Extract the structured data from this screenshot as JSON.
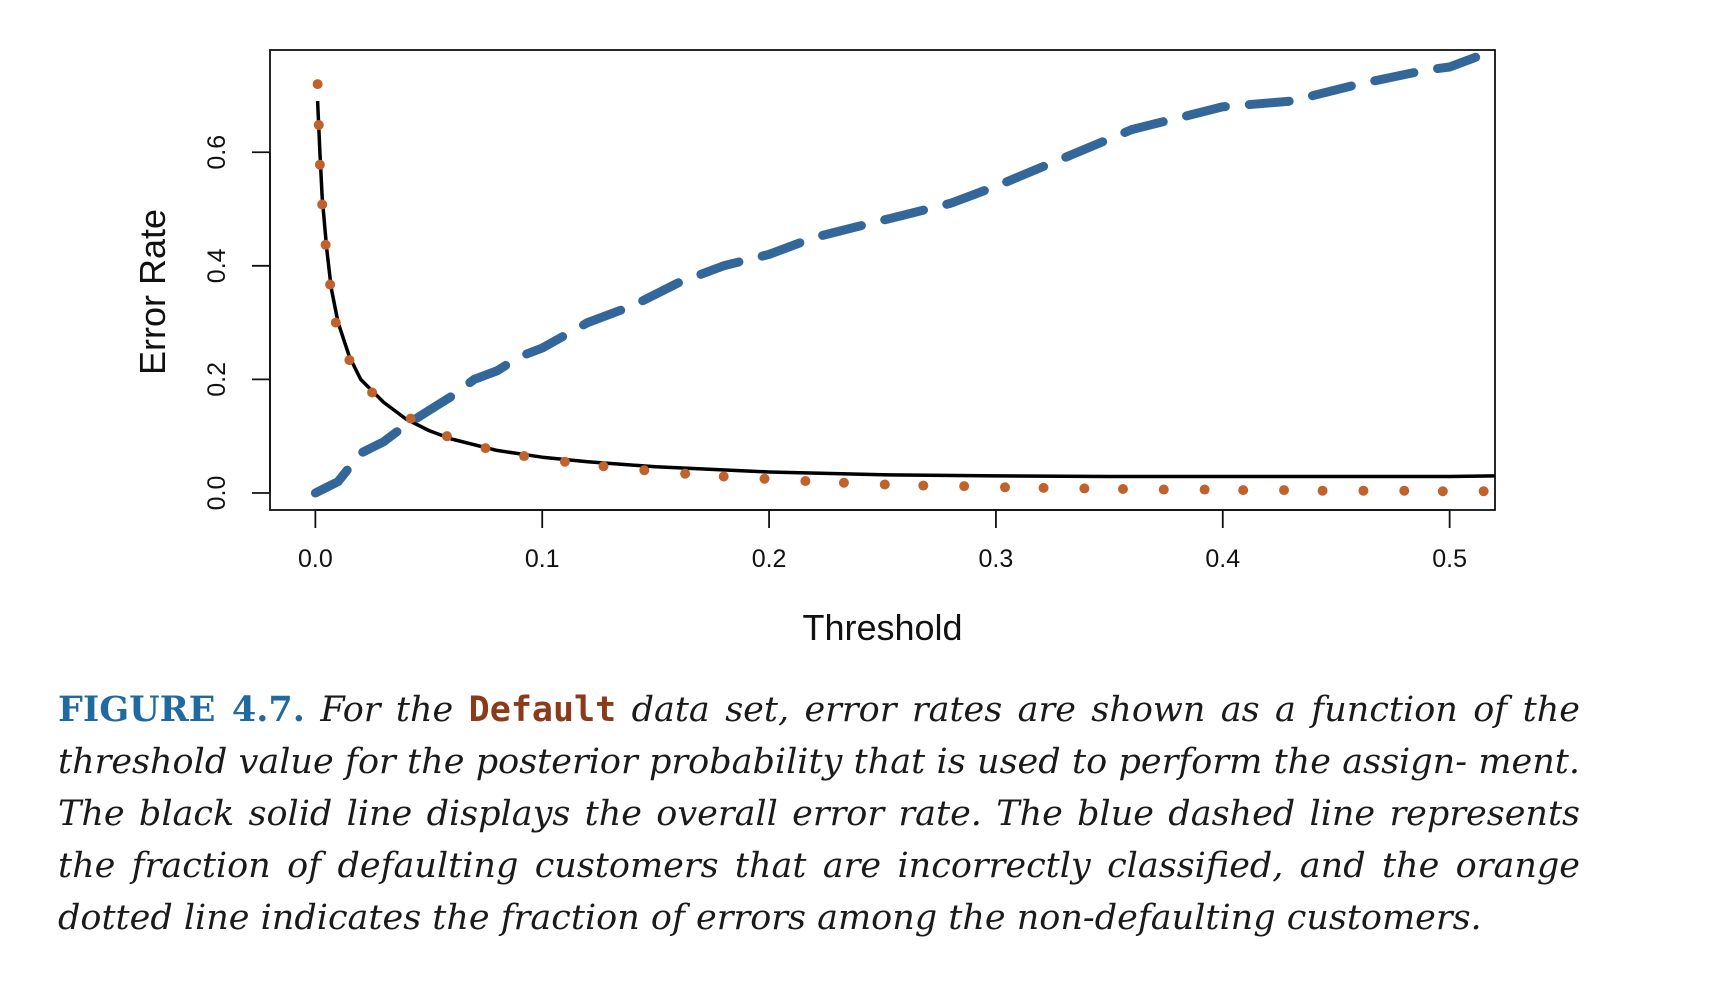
{
  "chart_data": {
    "type": "line",
    "xlabel": "Threshold",
    "ylabel": "Error Rate",
    "xlim": [
      -0.02,
      0.52
    ],
    "ylim": [
      -0.03,
      0.78
    ],
    "xticks": [
      0.0,
      0.1,
      0.2,
      0.3,
      0.4,
      0.5
    ],
    "xtick_labels": [
      "0.0",
      "0.1",
      "0.2",
      "0.3",
      "0.4",
      "0.5"
    ],
    "yticks": [
      0.0,
      0.2,
      0.4,
      0.6
    ],
    "ytick_labels": [
      "0.0",
      "0.2",
      "0.4",
      "0.6"
    ],
    "grid": false,
    "legend": "none",
    "series": [
      {
        "style": "solid",
        "color": "#000000",
        "x": [
          0.001,
          0.002,
          0.003,
          0.005,
          0.007,
          0.01,
          0.015,
          0.02,
          0.03,
          0.04,
          0.05,
          0.06,
          0.08,
          0.1,
          0.12,
          0.15,
          0.2,
          0.25,
          0.3,
          0.35,
          0.4,
          0.45,
          0.5,
          0.52
        ],
        "y": [
          0.69,
          0.6,
          0.52,
          0.43,
          0.36,
          0.3,
          0.24,
          0.2,
          0.16,
          0.13,
          0.11,
          0.095,
          0.075,
          0.063,
          0.055,
          0.046,
          0.037,
          0.032,
          0.03,
          0.029,
          0.029,
          0.029,
          0.029,
          0.03
        ]
      },
      {
        "style": "dashed",
        "color": "#336699",
        "x": [
          0.0,
          0.005,
          0.01,
          0.015,
          0.02,
          0.025,
          0.03,
          0.04,
          0.05,
          0.06,
          0.07,
          0.08,
          0.09,
          0.1,
          0.12,
          0.14,
          0.16,
          0.18,
          0.2,
          0.22,
          0.24,
          0.26,
          0.28,
          0.3,
          0.33,
          0.36,
          0.4,
          0.43,
          0.46,
          0.49,
          0.5,
          0.52
        ],
        "y": [
          0.0,
          0.01,
          0.02,
          0.045,
          0.07,
          0.08,
          0.09,
          0.12,
          0.145,
          0.17,
          0.2,
          0.215,
          0.24,
          0.255,
          0.3,
          0.33,
          0.37,
          0.4,
          0.42,
          0.45,
          0.47,
          0.49,
          0.51,
          0.54,
          0.59,
          0.64,
          0.68,
          0.69,
          0.72,
          0.745,
          0.75,
          0.78
        ]
      },
      {
        "style": "dotted",
        "color": "#c0622b",
        "x": [
          0.001,
          0.0015,
          0.002,
          0.003,
          0.0045,
          0.0065,
          0.009,
          0.015,
          0.025,
          0.042,
          0.058,
          0.075,
          0.092,
          0.11,
          0.127,
          0.145,
          0.163,
          0.18,
          0.198,
          0.216,
          0.233,
          0.251,
          0.268,
          0.286,
          0.304,
          0.321,
          0.339,
          0.356,
          0.374,
          0.392,
          0.409,
          0.427,
          0.444,
          0.462,
          0.48,
          0.497,
          0.515
        ],
        "y": [
          0.72,
          0.648,
          0.578,
          0.508,
          0.437,
          0.367,
          0.3,
          0.234,
          0.177,
          0.131,
          0.1,
          0.079,
          0.065,
          0.055,
          0.047,
          0.04,
          0.034,
          0.029,
          0.025,
          0.021,
          0.018,
          0.015,
          0.013,
          0.012,
          0.01,
          0.009,
          0.008,
          0.007,
          0.006,
          0.006,
          0.005,
          0.005,
          0.004,
          0.004,
          0.004,
          0.003,
          0.003
        ]
      }
    ]
  },
  "caption": {
    "label": "FIGURE 4.7.",
    "part1": "For the",
    "code_word": "Default",
    "part2": "data set, error rates are shown as a function of the threshold value for the posterior probability that is used to perform the assign- ment. The black solid line displays the overall error rate. The blue dashed line represents the fraction of defaulting customers that are incorrectly classified, and the orange dotted line indicates the fraction of errors among the non-defaulting customers."
  }
}
